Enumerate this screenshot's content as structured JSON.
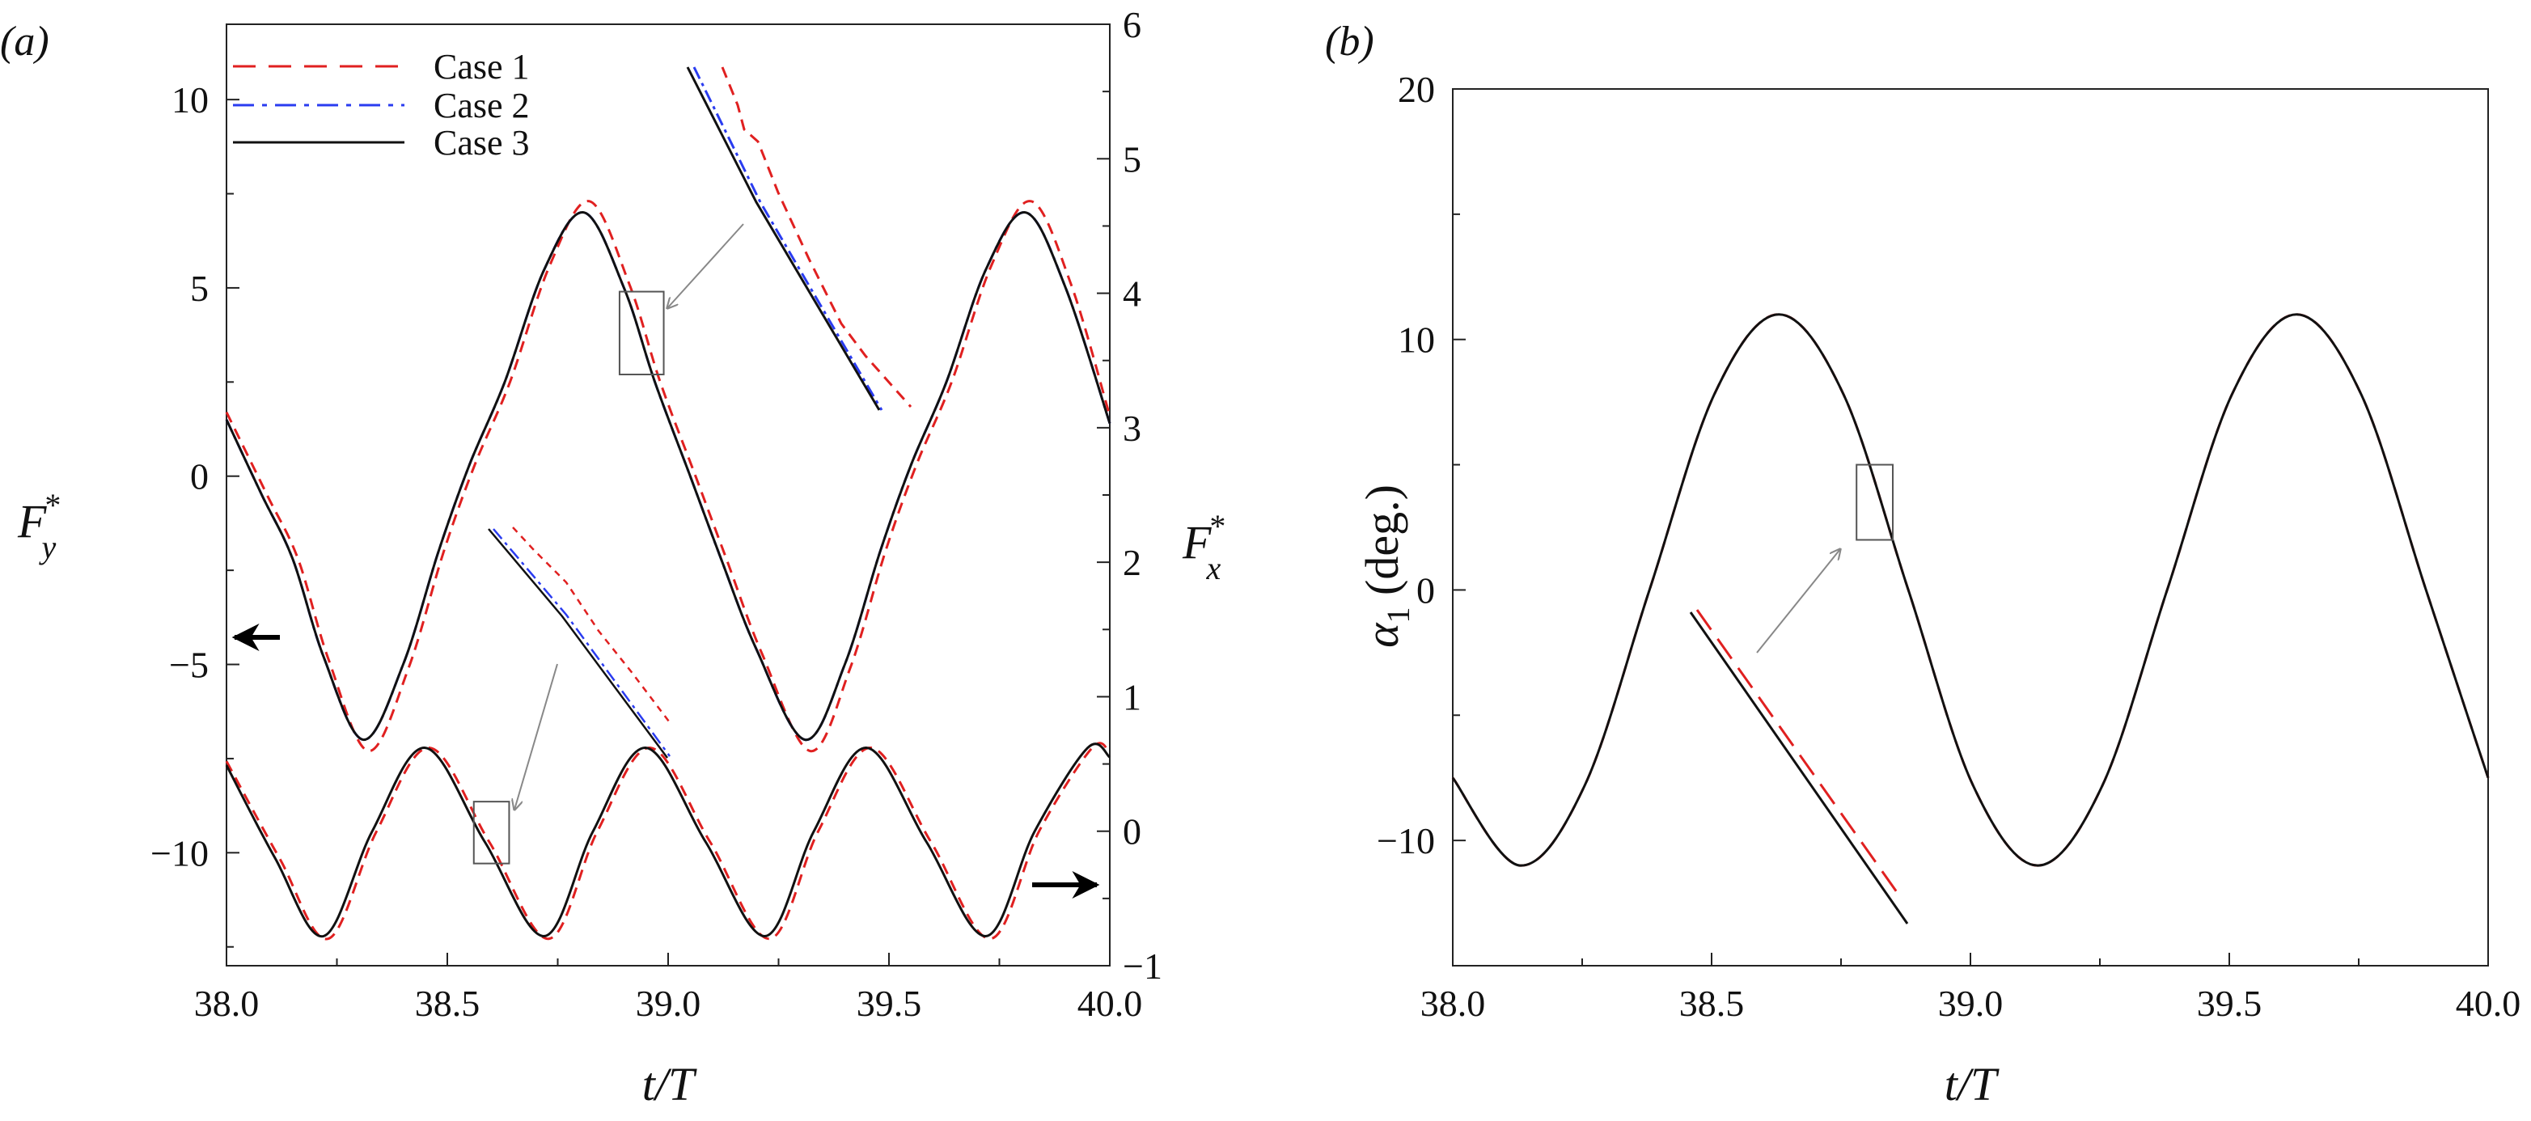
{
  "colors": {
    "case1": "#e02020",
    "case2": "#2a3cf0",
    "case3": "#111111",
    "inset": "#555555",
    "arrow": "#888888"
  },
  "chart_data": [
    {
      "panel": "(a)",
      "type": "line",
      "xlabel": "t/T",
      "xlim": [
        38.0,
        40.0
      ],
      "xticks": [
        "38.0",
        "38.5",
        "39.0",
        "39.5",
        "40.0"
      ],
      "xtick_values": [
        38.0,
        38.5,
        39.0,
        39.5,
        40.0
      ],
      "y_left": {
        "label_main": "F",
        "label_sub": "y",
        "label_sup": "*",
        "ylim": [
          -13,
          12
        ],
        "ticks": [
          "10",
          "5",
          "0",
          "−5",
          "−10"
        ],
        "tick_values": [
          10,
          5,
          0,
          -5,
          -10
        ]
      },
      "y_right": {
        "label_main": "F",
        "label_sub": "x",
        "label_sup": "*",
        "ylim": [
          -1,
          6
        ],
        "ticks": [
          "6",
          "5",
          "4",
          "3",
          "2",
          "1",
          "0",
          "−1"
        ],
        "tick_values": [
          6,
          5,
          4,
          3,
          2,
          1,
          0,
          -1
        ]
      },
      "legend": {
        "placement": "top-left",
        "entries": [
          {
            "label": "Case 1",
            "style": "dashed",
            "color": "#e02020"
          },
          {
            "label": "Case 2",
            "style": "dash-dot",
            "color": "#2a3cf0"
          },
          {
            "label": "Case 3",
            "style": "solid",
            "color": "#111111"
          }
        ]
      },
      "series": [
        {
          "name": "Case 1",
          "variable": "Fy",
          "axis": "left",
          "t": [
            38.0,
            38.092,
            38.162,
            38.232,
            38.322,
            38.412,
            38.492,
            38.562,
            38.642,
            38.732,
            38.822,
            38.912,
            38.982,
            39.062,
            39.132,
            39.212,
            39.322,
            39.412,
            39.492,
            39.562,
            39.642,
            39.732,
            39.822,
            39.912,
            40.0
          ],
          "values": [
            1.7,
            -0.5,
            -2.2,
            -4.9,
            -7.3,
            -5.1,
            -2.0,
            0.3,
            2.5,
            5.6,
            7.3,
            5.1,
            2.5,
            0,
            -2.2,
            -4.7,
            -7.3,
            -5.1,
            -2.0,
            0.3,
            2.5,
            5.6,
            7.3,
            5.1,
            1.6
          ]
        },
        {
          "name": "Case 2",
          "variable": "Fy",
          "axis": "left",
          "t": [
            38.0,
            38.08,
            38.15,
            38.22,
            38.31,
            38.4,
            38.48,
            38.55,
            38.63,
            38.72,
            38.81,
            38.9,
            38.97,
            39.05,
            39.12,
            39.2,
            39.31,
            39.4,
            39.48,
            39.55,
            39.63,
            39.72,
            39.81,
            39.9,
            40.0
          ],
          "values": [
            1.5,
            -0.5,
            -2.2,
            -4.8,
            -7.0,
            -5.0,
            -2.0,
            0.3,
            2.5,
            5.5,
            7.0,
            5.0,
            2.5,
            0,
            -2.2,
            -4.6,
            -7.0,
            -5.0,
            -2.0,
            0.3,
            2.5,
            5.5,
            7.0,
            5.0,
            1.4
          ]
        },
        {
          "name": "Case 3",
          "variable": "Fy",
          "axis": "left",
          "t": [
            38.0,
            38.08,
            38.15,
            38.22,
            38.31,
            38.4,
            38.48,
            38.55,
            38.63,
            38.72,
            38.81,
            38.9,
            38.97,
            39.05,
            39.12,
            39.2,
            39.31,
            39.4,
            39.48,
            39.55,
            39.63,
            39.72,
            39.81,
            39.9,
            40.0
          ],
          "values": [
            1.5,
            -0.5,
            -2.2,
            -4.8,
            -7.0,
            -5.0,
            -2.0,
            0.3,
            2.5,
            5.5,
            7.0,
            5.0,
            2.5,
            0,
            -2.2,
            -4.6,
            -7.0,
            -5.0,
            -2.0,
            0.3,
            2.5,
            5.5,
            7.0,
            5.0,
            1.4
          ]
        },
        {
          "name": "Case 1",
          "variable": "Fx",
          "axis": "right",
          "t": [
            38.0,
            38.12,
            38.23,
            38.34,
            38.46,
            38.595,
            38.73,
            38.84,
            38.96,
            39.095,
            39.23,
            39.34,
            39.46,
            39.595,
            39.73,
            39.84,
            39.96,
            40.0
          ],
          "values": [
            0.52,
            -0.2,
            -0.8,
            0.0,
            0.62,
            -0.08,
            -0.8,
            0.0,
            0.62,
            -0.08,
            -0.8,
            0.0,
            0.62,
            -0.08,
            -0.8,
            0.0,
            0.62,
            0.58
          ]
        },
        {
          "name": "Case 3",
          "variable": "Fx",
          "axis": "right",
          "t": [
            38.0,
            38.11,
            38.22,
            38.33,
            38.45,
            38.585,
            38.72,
            38.83,
            38.95,
            39.085,
            39.22,
            39.33,
            39.45,
            39.585,
            39.72,
            39.83,
            39.95,
            40.0
          ],
          "values": [
            0.49,
            -0.2,
            -0.78,
            0.0,
            0.62,
            -0.08,
            -0.78,
            0.0,
            0.62,
            -0.08,
            -0.78,
            0.0,
            0.62,
            -0.08,
            -0.78,
            0.0,
            0.62,
            0.55
          ]
        }
      ],
      "zoom_boxes": [
        {
          "axis": "left",
          "t": [
            38.89,
            38.99
          ],
          "y": [
            2.7,
            4.9
          ]
        },
        {
          "axis": "right",
          "t": [
            38.56,
            38.64
          ],
          "y": [
            -0.24,
            0.22
          ]
        }
      ]
    },
    {
      "panel": "(b)",
      "type": "line",
      "xlabel": "t/T",
      "xlim": [
        38.0,
        40.0
      ],
      "xticks": [
        "38.0",
        "38.5",
        "39.0",
        "39.5",
        "40.0"
      ],
      "xtick_values": [
        38.0,
        38.5,
        39.0,
        39.5,
        40.0
      ],
      "y": {
        "label_main": "α",
        "label_sub": "1",
        "label_rest": " (deg.)",
        "ylim": [
          -15,
          20
        ],
        "ticks": [
          "20",
          "10",
          "0",
          "−10"
        ],
        "tick_values": [
          20,
          10,
          0,
          -10
        ]
      },
      "series": [
        {
          "name": "Case 1",
          "t": [
            38.0,
            38.13,
            38.255,
            38.38,
            38.505,
            38.63,
            38.755,
            38.88,
            39.005,
            39.13,
            39.255,
            39.38,
            39.505,
            39.63,
            39.755,
            39.88,
            40.0
          ],
          "values": [
            -7.5,
            -11,
            -7.8,
            0,
            7.8,
            11,
            7.8,
            0,
            -7.8,
            -11,
            -7.8,
            0,
            7.8,
            11,
            7.8,
            0,
            -7.5
          ]
        },
        {
          "name": "Case 3",
          "t": [
            38.0,
            38.13,
            38.255,
            38.38,
            38.505,
            38.63,
            38.755,
            38.88,
            39.005,
            39.13,
            39.255,
            39.38,
            39.505,
            39.63,
            39.755,
            39.88,
            40.0
          ],
          "values": [
            -7.5,
            -11,
            -7.8,
            0,
            7.8,
            11,
            7.8,
            0,
            -7.8,
            -11,
            -7.8,
            0,
            7.8,
            11,
            7.8,
            0,
            -7.5
          ]
        }
      ],
      "zoom_boxes": [
        {
          "t": [
            38.78,
            38.85
          ],
          "y": [
            2,
            5
          ]
        }
      ]
    }
  ]
}
